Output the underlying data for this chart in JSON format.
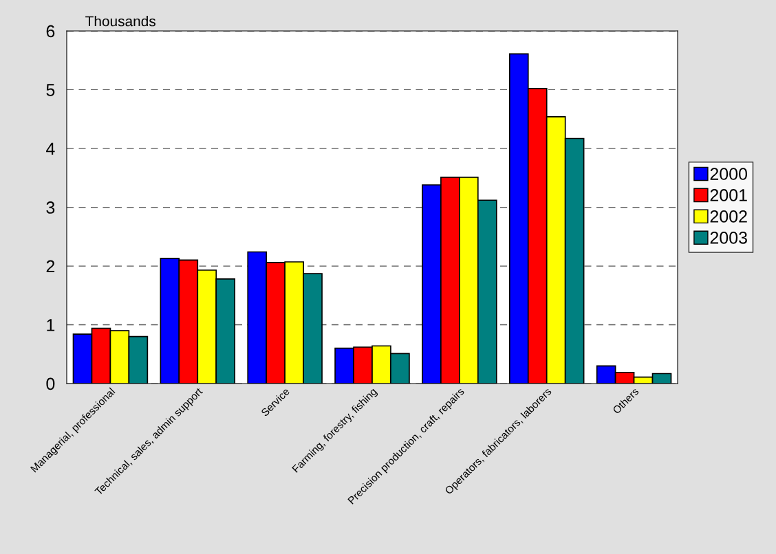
{
  "chart_data": {
    "type": "bar",
    "ylabel": "Thousands",
    "categories": [
      "Managerial, professional",
      "Technical, sales, admin support",
      "Service",
      "Farming, forestry, fishing",
      "Precision production, craft, repairs",
      "Operators, fabricators, laborers",
      "Others"
    ],
    "series": [
      {
        "name": "2000",
        "color": "#0000ff",
        "values": [
          0.84,
          2.13,
          2.24,
          0.6,
          3.38,
          5.61,
          0.3
        ]
      },
      {
        "name": "2001",
        "color": "#ff0000",
        "values": [
          0.94,
          2.1,
          2.06,
          0.62,
          3.51,
          5.02,
          0.19
        ]
      },
      {
        "name": "2002",
        "color": "#ffff00",
        "values": [
          0.9,
          1.93,
          2.07,
          0.64,
          3.51,
          4.54,
          0.11
        ]
      },
      {
        "name": "2003",
        "color": "#008080",
        "values": [
          0.8,
          1.78,
          1.87,
          0.51,
          3.12,
          4.17,
          0.17
        ]
      }
    ],
    "ylim": [
      0,
      6
    ],
    "yticks": [
      0,
      1,
      2,
      3,
      4,
      5,
      6
    ],
    "grid": "y",
    "line_style": "dashed",
    "legend": "right"
  }
}
